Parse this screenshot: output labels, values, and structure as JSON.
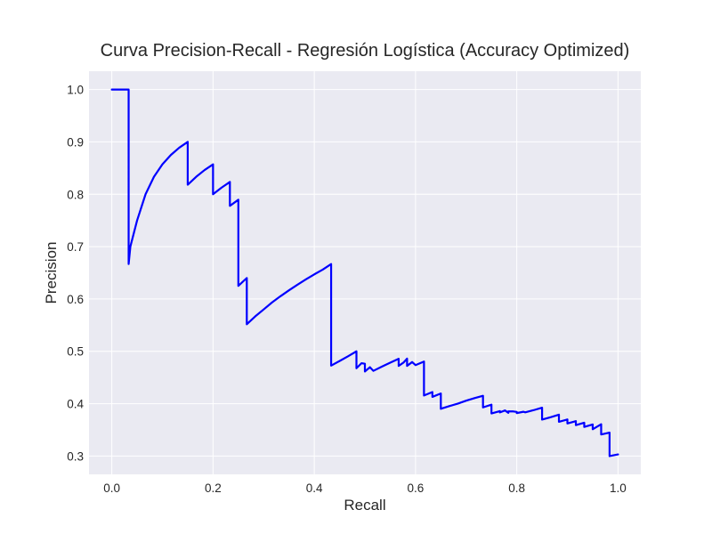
{
  "chart_data": {
    "type": "line",
    "title": "Curva Precision-Recall - Regresión Logística (Accuracy Optimized)",
    "xlabel": "Recall",
    "ylabel": "Precision",
    "xlim": [
      -0.045,
      1.045
    ],
    "ylim": [
      0.265,
      1.035
    ],
    "x_ticks": [
      0.0,
      0.2,
      0.4,
      0.6,
      0.8,
      1.0
    ],
    "x_tick_labels": [
      "0.0",
      "0.2",
      "0.4",
      "0.6",
      "0.8",
      "1.0"
    ],
    "y_ticks": [
      0.3,
      0.4,
      0.5,
      0.6,
      0.7,
      0.8,
      0.9,
      1.0
    ],
    "y_tick_labels": [
      "0.3",
      "0.4",
      "0.5",
      "0.6",
      "0.7",
      "0.8",
      "0.9",
      "1.0"
    ],
    "grid": true,
    "legend": "none",
    "colors": {
      "plot_background": "#eaeaf2",
      "grid": "#ffffff",
      "line": "#0000ff",
      "text": "#262626"
    },
    "series": [
      {
        "x": [
          0.0,
          0.0333,
          0.0333,
          0.0367,
          0.05,
          0.0667,
          0.0833,
          0.1,
          0.1167,
          0.1333,
          0.15,
          0.15,
          0.1667,
          0.1833,
          0.2,
          0.2,
          0.2167,
          0.2333,
          0.2333,
          0.25,
          0.25,
          0.2667,
          0.2667,
          0.2833,
          0.3,
          0.3167,
          0.3333,
          0.35,
          0.3667,
          0.3833,
          0.4,
          0.4167,
          0.4333,
          0.4333,
          0.45,
          0.4667,
          0.4833,
          0.4833,
          0.4933,
          0.5,
          0.5,
          0.51,
          0.5167,
          0.5167,
          0.5333,
          0.55,
          0.5667,
          0.5667,
          0.5767,
          0.5833,
          0.5833,
          0.5933,
          0.6,
          0.6,
          0.6167,
          0.6167,
          0.6333,
          0.6333,
          0.65,
          0.65,
          0.6667,
          0.6833,
          0.7,
          0.7,
          0.7167,
          0.7333,
          0.7333,
          0.75,
          0.75,
          0.7667,
          0.7667,
          0.7767,
          0.7833,
          0.7833,
          0.7933,
          0.8,
          0.8,
          0.8133,
          0.8167,
          0.8167,
          0.8333,
          0.85,
          0.85,
          0.8667,
          0.8833,
          0.8833,
          0.9,
          0.9,
          0.9167,
          0.9167,
          0.9333,
          0.9333,
          0.95,
          0.95,
          0.9667,
          0.9667,
          0.9833,
          0.9833,
          1.0
        ],
        "y": [
          1.0,
          1.0,
          0.6667,
          0.7,
          0.75,
          0.8,
          0.8333,
          0.8571,
          0.875,
          0.8889,
          0.9,
          0.8182,
          0.8333,
          0.8462,
          0.8571,
          0.8,
          0.8125,
          0.8235,
          0.7778,
          0.7895,
          0.625,
          0.64,
          0.5517,
          0.5667,
          0.58,
          0.5935,
          0.6053,
          0.6165,
          0.6272,
          0.6373,
          0.647,
          0.6561,
          0.6667,
          0.4727,
          0.4815,
          0.4906,
          0.5,
          0.4677,
          0.4773,
          0.4762,
          0.4615,
          0.4697,
          0.4627,
          0.4627,
          0.4706,
          0.4783,
          0.4857,
          0.4722,
          0.4789,
          0.4861,
          0.4722,
          0.4795,
          0.4737,
          0.4737,
          0.4805,
          0.4156,
          0.4222,
          0.413,
          0.4194,
          0.3902,
          0.3953,
          0.4,
          0.4057,
          0.4057,
          0.4107,
          0.4151,
          0.3929,
          0.3982,
          0.3814,
          0.3858,
          0.3833,
          0.3871,
          0.3826,
          0.3852,
          0.3852,
          0.3843,
          0.3821,
          0.3846,
          0.3835,
          0.3835,
          0.3876,
          0.3923,
          0.3696,
          0.3741,
          0.379,
          0.3654,
          0.3699,
          0.3623,
          0.3667,
          0.3591,
          0.3636,
          0.3556,
          0.3603,
          0.3512,
          0.3608,
          0.3412,
          0.3447,
          0.2999,
          0.3031
        ]
      }
    ]
  }
}
